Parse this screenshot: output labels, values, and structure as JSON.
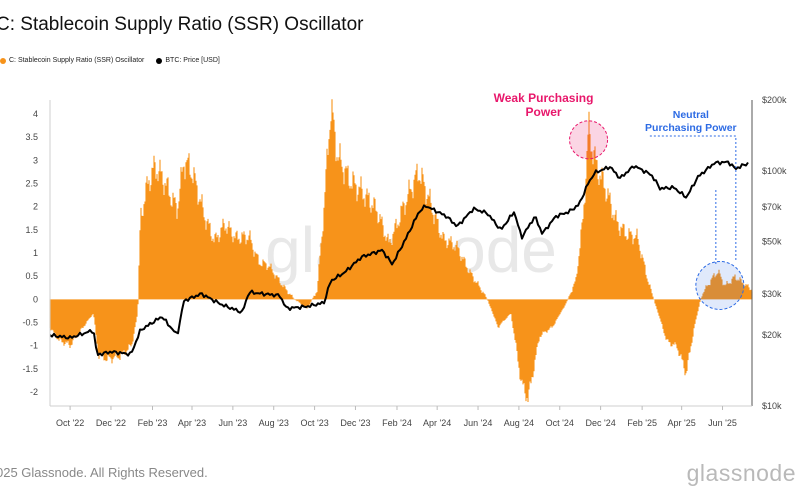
{
  "header": {
    "title": "C: Stablecoin Supply Ratio (SSR) Oscillator"
  },
  "legend": {
    "items": [
      {
        "label": "C: Stablecoin Supply Ratio (SSR) Oscillator",
        "color": "#f7931a"
      },
      {
        "label": "BTC: Price [USD]",
        "color": "#000000"
      }
    ]
  },
  "footer": {
    "copyright": "025 Glassnode. All Rights Reserved.",
    "brand": "glassnode",
    "watermark": "glassnode"
  },
  "chart_data": {
    "type": "area",
    "x_tick_labels": [
      "Oct '22",
      "Dec '22",
      "Feb '23",
      "Apr '23",
      "Jun '23",
      "Aug '23",
      "Oct '23",
      "Dec '23",
      "Feb '24",
      "Apr '24",
      "Jun '24",
      "Aug '24",
      "Oct '24",
      "Dec '24",
      "Feb '25",
      "Apr '25",
      "Jun '25"
    ],
    "x_range": [
      "2022-09-01",
      "2025-07-15"
    ],
    "y_left": {
      "ticks": [
        "4",
        "3.5",
        "3",
        "2.5",
        "2",
        "1.5",
        "1",
        "0.5",
        "0",
        "-0.5",
        "-1",
        "-1.5",
        "-2"
      ],
      "range": [
        -2.3,
        4.3
      ]
    },
    "y_right": {
      "ticks": [
        "$200k",
        "$100k",
        "$70k",
        "$50k",
        "$30k",
        "$20k",
        "$10k"
      ],
      "scale": "log",
      "range_usd": [
        10000,
        200000
      ]
    },
    "grid": false,
    "series": [
      {
        "name": "C: Stablecoin Supply Ratio (SSR) Oscillator",
        "axis": "left",
        "color": "#f7931a",
        "points": [
          [
            "2022-09-01",
            -0.6
          ],
          [
            "2022-09-15",
            -0.9
          ],
          [
            "2022-10-01",
            -1.0
          ],
          [
            "2022-10-20",
            -0.6
          ],
          [
            "2022-11-05",
            -0.3
          ],
          [
            "2022-11-12",
            -1.2
          ],
          [
            "2022-11-25",
            -1.3
          ],
          [
            "2022-12-15",
            -1.2
          ],
          [
            "2023-01-01",
            -1.0
          ],
          [
            "2023-01-10",
            -0.3
          ],
          [
            "2023-01-14",
            1.8
          ],
          [
            "2023-01-25",
            2.5
          ],
          [
            "2023-02-05",
            2.8
          ],
          [
            "2023-02-20",
            2.5
          ],
          [
            "2023-03-10",
            2.0
          ],
          [
            "2023-03-20",
            3.0
          ],
          [
            "2023-04-01",
            2.7
          ],
          [
            "2023-04-20",
            1.8
          ],
          [
            "2023-05-05",
            1.3
          ],
          [
            "2023-05-20",
            1.6
          ],
          [
            "2023-06-05",
            1.3
          ],
          [
            "2023-06-25",
            1.4
          ],
          [
            "2023-07-10",
            0.8
          ],
          [
            "2023-07-25",
            0.7
          ],
          [
            "2023-08-15",
            0.3
          ],
          [
            "2023-09-01",
            0.0
          ],
          [
            "2023-09-20",
            -0.2
          ],
          [
            "2023-10-05",
            0.2
          ],
          [
            "2023-10-15",
            2.0
          ],
          [
            "2023-10-25",
            4.2
          ],
          [
            "2023-11-05",
            3.0
          ],
          [
            "2023-11-20",
            2.6
          ],
          [
            "2023-12-10",
            2.4
          ],
          [
            "2024-01-01",
            1.9
          ],
          [
            "2024-01-20",
            1.2
          ],
          [
            "2024-02-10",
            2.0
          ],
          [
            "2024-03-05",
            2.7
          ],
          [
            "2024-03-20",
            2.2
          ],
          [
            "2024-04-10",
            1.3
          ],
          [
            "2024-05-01",
            1.1
          ],
          [
            "2024-05-20",
            0.6
          ],
          [
            "2024-06-15",
            0.0
          ],
          [
            "2024-07-01",
            -0.6
          ],
          [
            "2024-07-20",
            -0.3
          ],
          [
            "2024-08-05",
            -1.8
          ],
          [
            "2024-08-15",
            -2.1
          ],
          [
            "2024-09-01",
            -0.8
          ],
          [
            "2024-09-20",
            -0.6
          ],
          [
            "2024-10-10",
            -0.1
          ],
          [
            "2024-10-25",
            0.4
          ],
          [
            "2024-11-05",
            1.8
          ],
          [
            "2024-11-13",
            3.7
          ],
          [
            "2024-11-25",
            2.8
          ],
          [
            "2024-12-10",
            2.3
          ],
          [
            "2024-12-25",
            1.7
          ],
          [
            "2025-01-10",
            1.4
          ],
          [
            "2025-01-25",
            1.3
          ],
          [
            "2025-02-10",
            0.4
          ],
          [
            "2025-02-25",
            -0.3
          ],
          [
            "2025-03-10",
            -0.9
          ],
          [
            "2025-03-25",
            -1.0
          ],
          [
            "2025-04-08",
            -1.6
          ],
          [
            "2025-04-20",
            -0.6
          ],
          [
            "2025-05-01",
            0.1
          ],
          [
            "2025-05-15",
            0.4
          ],
          [
            "2025-05-25",
            0.6
          ],
          [
            "2025-06-05",
            0.3
          ],
          [
            "2025-06-20",
            0.5
          ],
          [
            "2025-07-05",
            0.3
          ],
          [
            "2025-07-15",
            0.2
          ]
        ]
      },
      {
        "name": "BTC: Price [USD]",
        "axis": "right",
        "color": "#000000",
        "points": [
          [
            "2022-09-01",
            20000
          ],
          [
            "2022-10-01",
            19500
          ],
          [
            "2022-10-25",
            20500
          ],
          [
            "2022-11-05",
            21000
          ],
          [
            "2022-11-10",
            16500
          ],
          [
            "2022-12-01",
            17000
          ],
          [
            "2022-12-31",
            16600
          ],
          [
            "2023-01-14",
            21000
          ],
          [
            "2023-02-15",
            24000
          ],
          [
            "2023-03-10",
            20000
          ],
          [
            "2023-03-20",
            28000
          ],
          [
            "2023-04-15",
            30000
          ],
          [
            "2023-05-15",
            27000
          ],
          [
            "2023-06-15",
            25000
          ],
          [
            "2023-06-25",
            30500
          ],
          [
            "2023-07-15",
            30000
          ],
          [
            "2023-08-10",
            29500
          ],
          [
            "2023-08-20",
            26000
          ],
          [
            "2023-09-20",
            26500
          ],
          [
            "2023-10-15",
            27500
          ],
          [
            "2023-10-25",
            34000
          ],
          [
            "2023-11-15",
            37000
          ],
          [
            "2023-12-10",
            43000
          ],
          [
            "2024-01-10",
            46000
          ],
          [
            "2024-01-25",
            40000
          ],
          [
            "2024-02-15",
            52000
          ],
          [
            "2024-03-05",
            67000
          ],
          [
            "2024-03-15",
            71000
          ],
          [
            "2024-04-15",
            64000
          ],
          [
            "2024-05-01",
            58000
          ],
          [
            "2024-05-25",
            69000
          ],
          [
            "2024-06-15",
            66000
          ],
          [
            "2024-07-05",
            56000
          ],
          [
            "2024-07-25",
            67000
          ],
          [
            "2024-08-05",
            52000
          ],
          [
            "2024-08-25",
            64000
          ],
          [
            "2024-09-05",
            54000
          ],
          [
            "2024-09-25",
            64000
          ],
          [
            "2024-10-15",
            67000
          ],
          [
            "2024-10-30",
            72000
          ],
          [
            "2024-11-12",
            88000
          ],
          [
            "2024-11-22",
            98000
          ],
          [
            "2024-12-15",
            104000
          ],
          [
            "2024-12-30",
            93000
          ],
          [
            "2025-01-20",
            105000
          ],
          [
            "2025-02-15",
            96000
          ],
          [
            "2025-02-28",
            84000
          ],
          [
            "2025-03-20",
            85000
          ],
          [
            "2025-04-08",
            77000
          ],
          [
            "2025-04-25",
            94000
          ],
          [
            "2025-05-20",
            108000
          ],
          [
            "2025-06-10",
            109000
          ],
          [
            "2025-06-20",
            102000
          ],
          [
            "2025-07-10",
            108000
          ]
        ]
      }
    ],
    "annotations": [
      {
        "text": [
          "Weak Purchasing",
          "Power"
        ],
        "color": "#e8176b",
        "date": "2024-11-13",
        "value": 3.7
      },
      {
        "text": [
          "Neutral",
          "Purchasing Power"
        ],
        "color": "#2d6be4",
        "date": "2025-05-28",
        "value": 0.3
      }
    ]
  }
}
